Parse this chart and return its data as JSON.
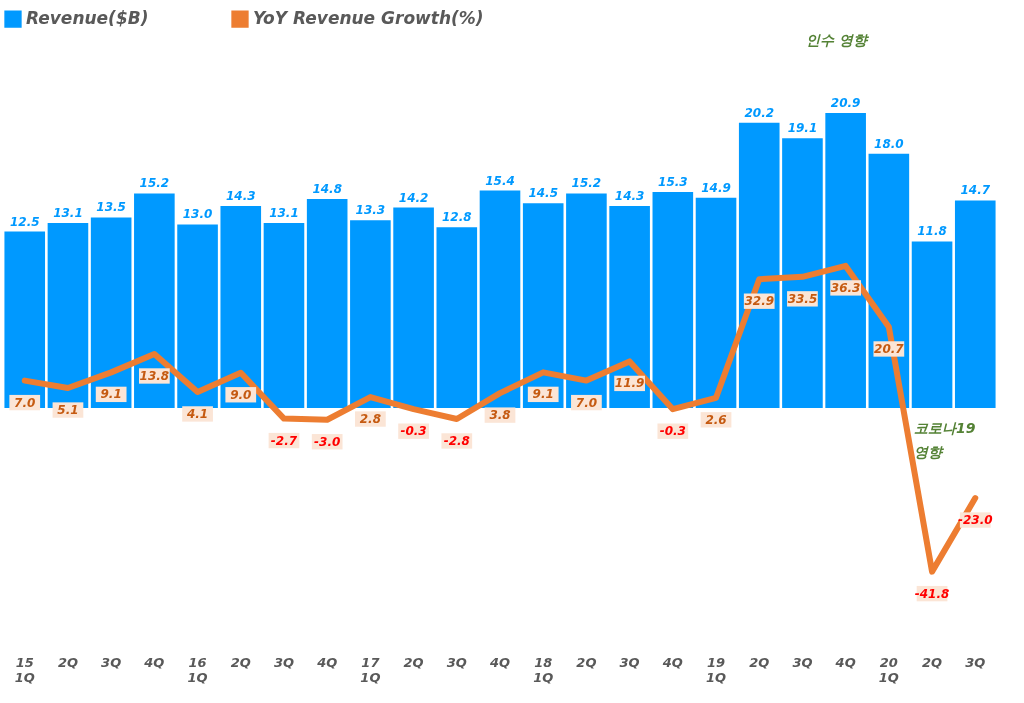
{
  "chart_data": {
    "type": "bar",
    "categories": [
      "15\n1Q",
      "2Q",
      "3Q",
      "4Q",
      "16\n1Q",
      "2Q",
      "3Q",
      "4Q",
      "17\n1Q",
      "2Q",
      "3Q",
      "4Q",
      "18\n1Q",
      "2Q",
      "3Q",
      "4Q",
      "19\n1Q",
      "2Q",
      "3Q",
      "4Q",
      "20\n1Q",
      "2Q",
      "3Q"
    ],
    "series": [
      {
        "name": "Revenue($B)",
        "color": "#0099ff",
        "values": [
          12.5,
          13.1,
          13.5,
          15.2,
          13.0,
          14.3,
          13.1,
          14.8,
          13.3,
          14.2,
          12.8,
          15.4,
          14.5,
          15.2,
          14.3,
          15.3,
          14.9,
          20.2,
          19.1,
          20.9,
          18.0,
          11.8,
          14.7
        ],
        "value_labels": [
          "12.5",
          "13.1",
          "13.5",
          "15.2",
          "13.0",
          "14.3",
          "13.1",
          "14.8",
          "13.3",
          "14.2",
          "12.8",
          "15.4",
          "14.5",
          "15.2",
          "14.3",
          "15.3",
          "14.9",
          "20.2",
          "19.1",
          "20.9",
          "18.0",
          "11.8",
          "14.7"
        ]
      },
      {
        "name": "YoY Revenue Growth(%)",
        "type": "line",
        "axis": "y2",
        "color": "#ed7d31",
        "values": [
          7.0,
          5.1,
          9.1,
          13.8,
          4.1,
          9.0,
          -2.7,
          -3.0,
          2.8,
          -0.3,
          -2.8,
          3.8,
          9.1,
          7.0,
          11.9,
          -0.3,
          2.6,
          32.9,
          33.5,
          36.3,
          20.7,
          -41.8,
          -23.0
        ],
        "value_labels": [
          "7.0",
          "5.1",
          "9.1",
          "13.8",
          "4.1",
          "9.0",
          "-2.7",
          "-3.0",
          "2.8",
          "-0.3",
          "-2.8",
          "3.8",
          "9.1",
          "7.0",
          "11.9",
          "-0.3",
          "2.6",
          "32.9",
          "33.5",
          "36.3",
          "20.7",
          "-41.8",
          "-23.0"
        ]
      }
    ],
    "legend": "top",
    "grid": false,
    "tick_labels": "x",
    "annotations": [
      "인수 영향",
      "코로나19\n영향"
    ]
  }
}
